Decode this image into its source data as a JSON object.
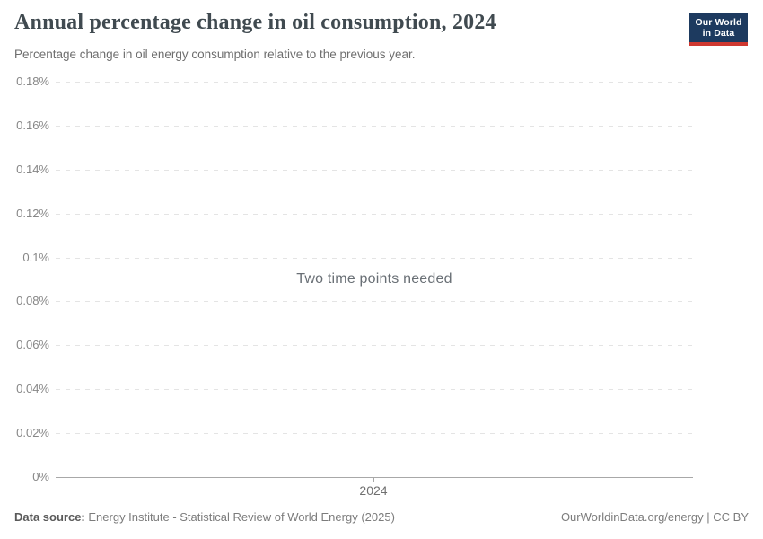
{
  "header": {
    "title": "Annual percentage change in oil consumption, 2024",
    "subtitle": "Percentage change in oil energy consumption relative to the previous year.",
    "logo": {
      "line1": "Our World",
      "line2": "in Data"
    }
  },
  "chart_data": {
    "type": "line",
    "title": "Annual percentage change in oil consumption, 2024",
    "subtitle": "Percentage change in oil energy consumption relative to the previous year.",
    "message": "Two time points needed",
    "series": [],
    "x": {
      "tick_labels": [
        "2024"
      ]
    },
    "y": {
      "tick_labels": [
        "0.18%",
        "0.16%",
        "0.14%",
        "0.12%",
        "0.1%",
        "0.08%",
        "0.06%",
        "0.04%",
        "0.02%",
        "0%"
      ],
      "min": 0,
      "max": 0.18,
      "unit": "%"
    },
    "grid": true,
    "gridline_style": "dashed",
    "legend": false,
    "note": "No data points plotted; chart displays an empty-state message because two time points are required."
  },
  "footer": {
    "datasource_label": "Data source:",
    "datasource_text": "Energy Institute - Statistical Review of World Energy (2025)",
    "license": "OurWorldinData.org/energy | CC BY"
  },
  "colors": {
    "logo_navy": "#1d3a5f",
    "logo_red": "#cf3830",
    "title_text": "#404a50",
    "subtitle_text": "#6e6e6e",
    "axis_label": "#878787",
    "gridline": "#e4e4e4",
    "axis_line": "#a8a8a8",
    "message_text": "#696f75",
    "footer_text": "#7c7c7c",
    "background": "#ffffff"
  }
}
